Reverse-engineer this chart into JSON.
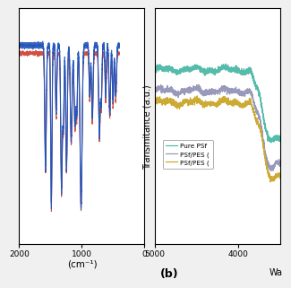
{
  "left_panel": {
    "xlabel": "(cm⁻¹)",
    "xlim": [
      2000,
      0
    ],
    "xticks": [
      2000,
      1000,
      0
    ],
    "xticklabels": [
      "2000",
      "1000",
      "0"
    ],
    "line_colors": [
      "#2255bb",
      "#2255bb",
      "#cc3322"
    ],
    "bg_color": "#ffffff"
  },
  "right_panel": {
    "ylabel": "Transmitance (a.u.)",
    "panel_label": "(b)",
    "wa_label": "Wa",
    "xlim": [
      5000,
      3500
    ],
    "xticks": [
      5000,
      4000
    ],
    "xticklabels": [
      "5000",
      "4000"
    ],
    "legend_entries": [
      "Pure PSf",
      "PSf/PES (",
      "PSf/PES ("
    ],
    "line_colors": [
      "#55bbaa",
      "#9999bb",
      "#ccaa33"
    ],
    "bg_color": "#ffffff"
  },
  "figure_bg": "#f0f0f0"
}
